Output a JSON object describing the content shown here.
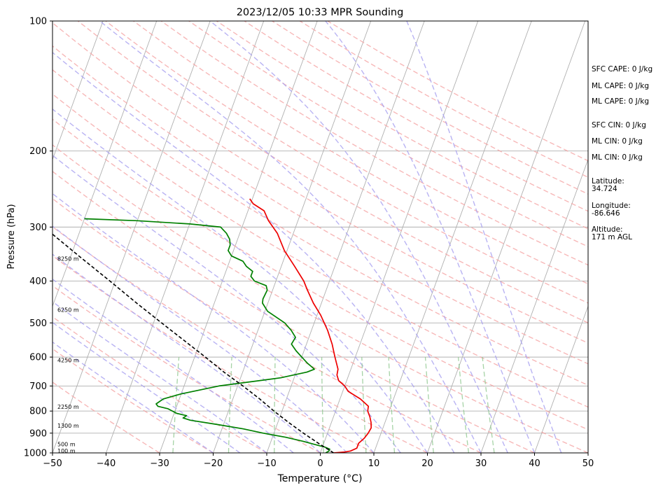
{
  "chart_data": {
    "type": "line",
    "title": "2023/12/05 10:33 MPR Sounding",
    "xlabel": "Temperature (°C)",
    "ylabel": "Pressure (hPa)",
    "xlim": [
      -50,
      50
    ],
    "ylim": [
      1000,
      100
    ],
    "y_scale": "log",
    "grid": true,
    "x_ticks": [
      -50,
      -40,
      -30,
      -20,
      -10,
      0,
      10,
      20,
      30,
      40,
      50
    ],
    "x_tick_labels": [
      "−50",
      "−40",
      "−30",
      "−20",
      "−10",
      "0",
      "10",
      "20",
      "30",
      "40",
      "50"
    ],
    "y_ticks": [
      1000,
      900,
      800,
      700,
      600,
      500,
      400,
      300,
      200,
      100
    ],
    "y_tick_labels": [
      "1000",
      "900",
      "800",
      "700",
      "600",
      "500",
      "400",
      "300",
      "200",
      "100"
    ],
    "series": [
      {
        "color": "#ee0000",
        "points": [
          {
            "p": 1000,
            "t": 2.5
          },
          {
            "p": 995,
            "t": 4.5
          },
          {
            "p": 990,
            "t": 5.5
          },
          {
            "p": 975,
            "t": 6.5
          },
          {
            "p": 950,
            "t": 6.5
          },
          {
            "p": 925,
            "t": 7.2
          },
          {
            "p": 900,
            "t": 7.6
          },
          {
            "p": 875,
            "t": 7.8
          },
          {
            "p": 850,
            "t": 7.4
          },
          {
            "p": 825,
            "t": 6.8
          },
          {
            "p": 800,
            "t": 6.0
          },
          {
            "p": 780,
            "t": 5.8
          },
          {
            "p": 750,
            "t": 3.8
          },
          {
            "p": 720,
            "t": 1.0
          },
          {
            "p": 700,
            "t": 0.0
          },
          {
            "p": 680,
            "t": -1.5
          },
          {
            "p": 660,
            "t": -2.2
          },
          {
            "p": 640,
            "t": -2.4
          },
          {
            "p": 600,
            "t": -3.8
          },
          {
            "p": 560,
            "t": -5.2
          },
          {
            "p": 520,
            "t": -7.0
          },
          {
            "p": 480,
            "t": -9.3
          },
          {
            "p": 450,
            "t": -11.5
          },
          {
            "p": 420,
            "t": -13.5
          },
          {
            "p": 400,
            "t": -14.8
          },
          {
            "p": 370,
            "t": -17.5
          },
          {
            "p": 340,
            "t": -20.5
          },
          {
            "p": 310,
            "t": -23.0
          },
          {
            "p": 290,
            "t": -25.5
          },
          {
            "p": 275,
            "t": -27.0
          },
          {
            "p": 265,
            "t": -29.5
          },
          {
            "p": 258,
            "t": -30.5
          }
        ]
      },
      {
        "color": "#008000",
        "points": [
          {
            "p": 1000,
            "t": 1.0
          },
          {
            "p": 990,
            "t": 1.5
          },
          {
            "p": 980,
            "t": 1.5
          },
          {
            "p": 970,
            "t": 0.5
          },
          {
            "p": 960,
            "t": -1.0
          },
          {
            "p": 940,
            "t": -4.0
          },
          {
            "p": 920,
            "t": -7.5
          },
          {
            "p": 900,
            "t": -12.0
          },
          {
            "p": 880,
            "t": -16.0
          },
          {
            "p": 860,
            "t": -21.0
          },
          {
            "p": 840,
            "t": -26.5
          },
          {
            "p": 830,
            "t": -28.0
          },
          {
            "p": 820,
            "t": -27.5
          },
          {
            "p": 810,
            "t": -29.5
          },
          {
            "p": 790,
            "t": -31.5
          },
          {
            "p": 780,
            "t": -33.5
          },
          {
            "p": 770,
            "t": -34.0
          },
          {
            "p": 750,
            "t": -33.0
          },
          {
            "p": 730,
            "t": -30.0
          },
          {
            "p": 700,
            "t": -23.5
          },
          {
            "p": 670,
            "t": -12.5
          },
          {
            "p": 650,
            "t": -8.0
          },
          {
            "p": 640,
            "t": -6.8
          },
          {
            "p": 620,
            "t": -8.5
          },
          {
            "p": 600,
            "t": -10.0
          },
          {
            "p": 580,
            "t": -11.5
          },
          {
            "p": 560,
            "t": -12.8
          },
          {
            "p": 540,
            "t": -12.5
          },
          {
            "p": 520,
            "t": -13.8
          },
          {
            "p": 500,
            "t": -15.5
          },
          {
            "p": 470,
            "t": -19.5
          },
          {
            "p": 450,
            "t": -21.0
          },
          {
            "p": 440,
            "t": -21.2
          },
          {
            "p": 420,
            "t": -21.0
          },
          {
            "p": 410,
            "t": -21.5
          },
          {
            "p": 400,
            "t": -24.0
          },
          {
            "p": 390,
            "t": -25.0
          },
          {
            "p": 380,
            "t": -25.0
          },
          {
            "p": 370,
            "t": -26.5
          },
          {
            "p": 360,
            "t": -27.5
          },
          {
            "p": 350,
            "t": -30.0
          },
          {
            "p": 340,
            "t": -31.0
          },
          {
            "p": 330,
            "t": -31.0
          },
          {
            "p": 320,
            "t": -31.5
          },
          {
            "p": 310,
            "t": -32.5
          },
          {
            "p": 300,
            "t": -34.0
          },
          {
            "p": 295,
            "t": -40.0
          },
          {
            "p": 290,
            "t": -50.0
          },
          {
            "p": 287,
            "t": -60.0
          }
        ]
      },
      {
        "color": "#000000",
        "dashed": true,
        "points": [
          {
            "p": 1000,
            "t": 2.5
          },
          {
            "p": 950,
            "t": -1.0
          },
          {
            "p": 900,
            "t": -4.5
          },
          {
            "p": 850,
            "t": -8.0
          },
          {
            "p": 800,
            "t": -11.5
          },
          {
            "p": 750,
            "t": -15.0
          },
          {
            "p": 700,
            "t": -19.0
          },
          {
            "p": 650,
            "t": -23.5
          },
          {
            "p": 600,
            "t": -28.0
          },
          {
            "p": 550,
            "t": -33.0
          },
          {
            "p": 500,
            "t": -38.5
          },
          {
            "p": 450,
            "t": -44.5
          },
          {
            "p": 400,
            "t": -51.0
          },
          {
            "p": 350,
            "t": -58.5
          },
          {
            "p": 300,
            "t": -67.0
          },
          {
            "p": 270,
            "t": -72.5
          }
        ]
      }
    ],
    "height_labels": [
      {
        "p": 988,
        "text": "100 m"
      },
      {
        "p": 955,
        "text": "500 m"
      },
      {
        "p": 865,
        "text": "1300 m"
      },
      {
        "p": 782,
        "text": "2250 m"
      },
      {
        "p": 610,
        "text": "4250 m"
      },
      {
        "p": 466,
        "text": "6250 m"
      },
      {
        "p": 355,
        "text": "8250 m"
      }
    ],
    "side_panel": [
      {
        "lines": [
          "SFC CAPE: 0 J/kg"
        ]
      },
      {
        "lines": [
          "ML CAPE: 0 J/kg"
        ]
      },
      {
        "lines": [
          "ML CAPE: 0 J/kg"
        ]
      },
      {
        "lines": [
          "SFC CIN: 0 J/kg"
        ]
      },
      {
        "lines": [
          "ML CIN: 0 J/kg"
        ]
      },
      {
        "lines": [
          "ML CIN: 0 J/kg"
        ]
      },
      {
        "lines": [
          "Latitude:",
          "34.724"
        ]
      },
      {
        "lines": [
          "Longitude:",
          "-86.646"
        ]
      },
      {
        "lines": [
          "Altitude:",
          "171 m AGL"
        ]
      }
    ],
    "colors": {
      "isotherm": "#b0b0b0",
      "dry_adiabat": "#f4a0a0",
      "moist_adiabat": "#a8a0f0",
      "mixing_ratio": "#90c890"
    }
  }
}
